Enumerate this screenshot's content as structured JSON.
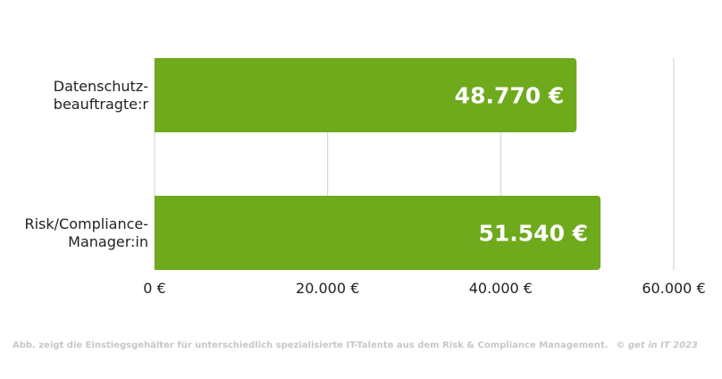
{
  "chart_data": {
    "type": "bar",
    "orientation": "horizontal",
    "categories": [
      "Datenschutz-\nbeauftragte:r",
      "Risk/Compliance-\nManager:in"
    ],
    "values": [
      48770,
      51540
    ],
    "value_labels": [
      "48.770 €",
      "51.540 €"
    ],
    "xlim": [
      0,
      60000
    ],
    "xticks": [
      0,
      20000,
      40000,
      60000
    ],
    "xtick_labels": [
      "0 €",
      "20.000 €",
      "40.000 €",
      "60.000 €"
    ],
    "grid": true,
    "bar_color": "#6eaa1c"
  },
  "footer": {
    "caption": "Abb. zeigt die Einstiegsgehälter für unterschiedlich spezialisierte IT-Talente aus dem Risk & Compliance Management.",
    "copyright": "© get in IT 2023"
  }
}
